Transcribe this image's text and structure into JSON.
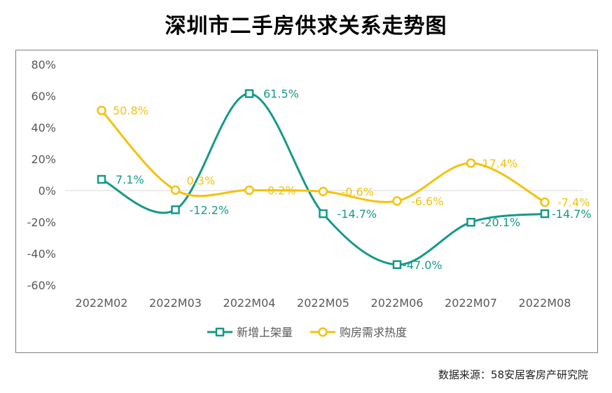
{
  "title": "深圳市二手房供求关系走势图",
  "source": "数据来源：58安居客房产研究院",
  "colors": {
    "series1": "#15998a",
    "series2": "#f4c20e",
    "axis_text": "#595959",
    "zero_line": "#d9d9d9"
  },
  "chart_data": {
    "type": "line",
    "title": "深圳市二手房供求关系走势图",
    "categories": [
      "2022M02",
      "2022M03",
      "2022M04",
      "2022M05",
      "2022M06",
      "2022M07",
      "2022M08"
    ],
    "ylim": [
      -60,
      80
    ],
    "yticks": [
      -60,
      -40,
      -20,
      0,
      20,
      40,
      60,
      80
    ],
    "ytick_labels": [
      "-60%",
      "-40%",
      "-20%",
      "0%",
      "20%",
      "40%",
      "60%",
      "80%"
    ],
    "grid": false,
    "legend_position": "bottom",
    "series": [
      {
        "name": "新增上架量",
        "marker": "square",
        "color": "#15998a",
        "values": [
          7.1,
          -12.2,
          61.5,
          -14.7,
          -47.0,
          -20.1,
          -14.7
        ],
        "labels": [
          "7.1%",
          "-12.2%",
          "61.5%",
          "-14.7%",
          "-47.0%",
          "-20.1%",
          "-14.7%"
        ]
      },
      {
        "name": "购房需求热度",
        "marker": "circle",
        "color": "#f4c20e",
        "values": [
          50.8,
          0.3,
          0.2,
          -0.6,
          -6.6,
          17.4,
          -7.4
        ],
        "labels": [
          "50.8%",
          "0.3%",
          "0.2%",
          "-0.6%",
          "-6.6%",
          "17.4%",
          "-7.4%"
        ]
      }
    ]
  }
}
